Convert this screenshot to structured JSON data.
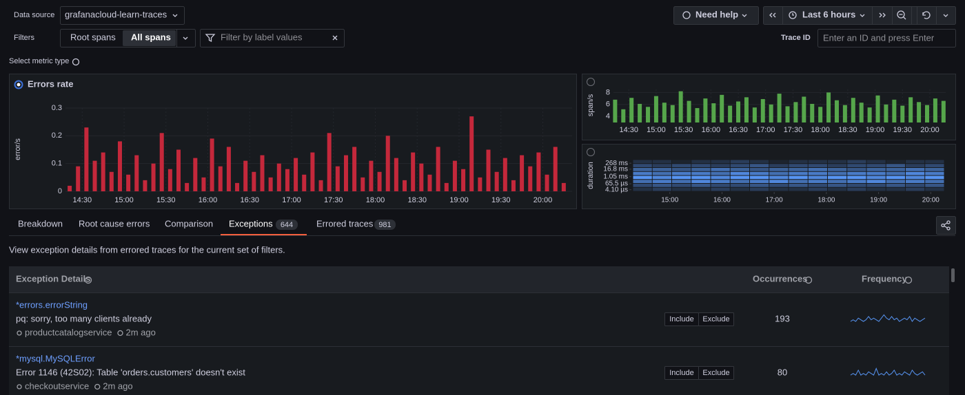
{
  "toolbar": {
    "data_source_label": "Data source",
    "data_source": "grafanacloud-learn-traces",
    "need_help": "Need help",
    "time_range": "Last 6 hours",
    "filters_label": "Filters",
    "root_spans": "Root spans",
    "all_spans": "All spans",
    "filter_placeholder": "Filter by label values",
    "trace_id_label": "Trace ID",
    "trace_id_placeholder": "Enter an ID and press Enter"
  },
  "metric_label": "Select metric type",
  "chart_data": [
    {
      "type": "bar",
      "title": "Errors rate",
      "ylabel": "error/s",
      "color": "#c4283b",
      "grid": true,
      "x": [
        14.35,
        14.45,
        14.55,
        14.65,
        14.75,
        14.85,
        14.95,
        15.05,
        15.15,
        15.25,
        15.35,
        15.45,
        15.55,
        15.65,
        15.75,
        15.85,
        15.95,
        16.05,
        16.15,
        16.25,
        16.35,
        16.45,
        16.55,
        16.65,
        16.75,
        16.85,
        16.95,
        17.05,
        17.15,
        17.25,
        17.35,
        17.45,
        17.55,
        17.65,
        17.75,
        17.85,
        17.95,
        18.05,
        18.15,
        18.25,
        18.35,
        18.45,
        18.55,
        18.65,
        18.75,
        18.85,
        18.95,
        19.05,
        19.15,
        19.25,
        19.35,
        19.45,
        19.55,
        19.65,
        19.75,
        19.85,
        19.95,
        20.05,
        20.15,
        20.25
      ],
      "values": [
        0.02,
        0.09,
        0.23,
        0.11,
        0.14,
        0.07,
        0.18,
        0.06,
        0.13,
        0.04,
        0.1,
        0.21,
        0.08,
        0.15,
        0.03,
        0.12,
        0.05,
        0.19,
        0.09,
        0.16,
        0.03,
        0.11,
        0.07,
        0.13,
        0.05,
        0.1,
        0.08,
        0.12,
        0.06,
        0.14,
        0.04,
        0.21,
        0.09,
        0.13,
        0.16,
        0.05,
        0.11,
        0.07,
        0.2,
        0.12,
        0.04,
        0.14,
        0.1,
        0.06,
        0.16,
        0.03,
        0.11,
        0.08,
        0.27,
        0.05,
        0.15,
        0.07,
        0.12,
        0.04,
        0.13,
        0.09,
        0.14,
        0.06,
        0.16,
        0.03
      ],
      "xlim": [
        14.3,
        20.35
      ],
      "xticks": [
        {
          "value": 14.5,
          "label": "14:30"
        },
        {
          "value": 15,
          "label": "15:00"
        },
        {
          "value": 15.5,
          "label": "15:30"
        },
        {
          "value": 16,
          "label": "16:00"
        },
        {
          "value": 16.5,
          "label": "16:30"
        },
        {
          "value": 17,
          "label": "17:00"
        },
        {
          "value": 17.5,
          "label": "17:30"
        },
        {
          "value": 18,
          "label": "18:00"
        },
        {
          "value": 18.5,
          "label": "18:30"
        },
        {
          "value": 19,
          "label": "19:00"
        },
        {
          "value": 19.5,
          "label": "19:30"
        },
        {
          "value": 20,
          "label": "20:00"
        }
      ],
      "ylim": [
        0,
        0.3
      ],
      "yticks": [
        0,
        0.1,
        0.2,
        0.3
      ]
    },
    {
      "type": "bar",
      "ylabel": "span/s",
      "color": "#56a64b",
      "grid": true,
      "x": [
        14.25,
        14.4,
        14.55,
        14.7,
        14.85,
        15,
        15.15,
        15.3,
        15.45,
        15.6,
        15.75,
        15.9,
        16.05,
        16.2,
        16.35,
        16.5,
        16.65,
        16.8,
        16.95,
        17.1,
        17.25,
        17.4,
        17.55,
        17.7,
        17.85,
        18,
        18.15,
        18.3,
        18.45,
        18.6,
        18.75,
        18.9,
        19.05,
        19.2,
        19.35,
        19.5,
        19.65,
        19.8,
        19.95,
        20.1,
        20.25
      ],
      "values": [
        6.8,
        5.2,
        7.1,
        6.1,
        5.6,
        7.4,
        6.3,
        5.9,
        8.2,
        6.6,
        5.4,
        7.0,
        6.2,
        7.6,
        5.8,
        6.5,
        7.2,
        5.5,
        6.9,
        6.0,
        7.8,
        5.7,
        6.4,
        7.3,
        6.1,
        5.6,
        8.0,
        6.7,
        5.9,
        7.1,
        6.3,
        5.5,
        7.5,
        6.0,
        6.8,
        5.8,
        7.2,
        6.4,
        5.9,
        7.0,
        6.6
      ],
      "xlim": [
        14.22,
        20.29
      ],
      "xticks": [
        {
          "value": 14.5,
          "label": "14:30"
        },
        {
          "value": 15,
          "label": "15:00"
        },
        {
          "value": 15.5,
          "label": "15:30"
        },
        {
          "value": 16,
          "label": "16:00"
        },
        {
          "value": 16.5,
          "label": "16:30"
        },
        {
          "value": 17,
          "label": "17:00"
        },
        {
          "value": 17.5,
          "label": "17:30"
        },
        {
          "value": 18,
          "label": "18:00"
        },
        {
          "value": 18.5,
          "label": "18:30"
        },
        {
          "value": 19,
          "label": "19:00"
        },
        {
          "value": 19.5,
          "label": "19:30"
        },
        {
          "value": 20,
          "label": "20:00"
        }
      ],
      "ylim": [
        3,
        8.5
      ],
      "yticks": [
        4,
        6,
        8
      ]
    },
    {
      "type": "heatmap",
      "ylabel": "duration",
      "color": "#5794f2",
      "values": [
        [
          1,
          2,
          1,
          1,
          2,
          1,
          2,
          1,
          1,
          2,
          1,
          2,
          1,
          1,
          2,
          1
        ],
        [
          3,
          4,
          3,
          4,
          3,
          3,
          4,
          3,
          4,
          3,
          4,
          3,
          3,
          4,
          3,
          4
        ],
        [
          6,
          7,
          6,
          8,
          7,
          6,
          7,
          8,
          6,
          7,
          6,
          7,
          8,
          6,
          7,
          6
        ],
        [
          9,
          8,
          9,
          9,
          8,
          9,
          9,
          8,
          9,
          8,
          9,
          9,
          8,
          9,
          8,
          9
        ],
        [
          7,
          6,
          7,
          7,
          6,
          8,
          7,
          6,
          7,
          7,
          6,
          7,
          7,
          6,
          8,
          7
        ],
        [
          5,
          5,
          4,
          5,
          6,
          5,
          4,
          5,
          5,
          6,
          5,
          4,
          5,
          5,
          6,
          5
        ],
        [
          3,
          2,
          3,
          3,
          2,
          3,
          4,
          2,
          3,
          3,
          2,
          3,
          3,
          4,
          2,
          3
        ],
        [
          1,
          1,
          0,
          1,
          1,
          2,
          1,
          0,
          1,
          1,
          1,
          2,
          1,
          0,
          1,
          1
        ]
      ],
      "xlim": [
        14.29,
        20.26
      ],
      "xticks": [
        {
          "value": 15,
          "label": "15:00"
        },
        {
          "value": 16,
          "label": "16:00"
        },
        {
          "value": 17,
          "label": "17:00"
        },
        {
          "value": 18,
          "label": "18:00"
        },
        {
          "value": 19,
          "label": "19:00"
        },
        {
          "value": 20,
          "label": "20:00"
        }
      ],
      "ylim": [
        0,
        8
      ],
      "yticks": [
        {
          "value": 7.1,
          "label": "268 ms"
        },
        {
          "value": 5.6,
          "label": "16.8 ms"
        },
        {
          "value": 3.7,
          "label": "1.05 ms"
        },
        {
          "value": 1.9,
          "label": "65.5 µs"
        },
        {
          "value": 0.4,
          "label": "4.10 µs"
        }
      ]
    }
  ],
  "tabs": [
    {
      "label": "Breakdown"
    },
    {
      "label": "Root cause errors"
    },
    {
      "label": "Comparison"
    },
    {
      "label": "Exceptions",
      "count": 644
    },
    {
      "label": "Errored traces",
      "count": 981
    }
  ],
  "description": "View exception details from errored traces for the current set of filters.",
  "table": {
    "headers": [
      "Exception Details",
      "Occurrences",
      "Frequency"
    ],
    "rows": [
      {
        "type": "*errors.errorString",
        "message": "pq: sorry, too many clients already",
        "service": "productcatalogservice",
        "time": "2m ago",
        "include": "Include",
        "exclude": "Exclude",
        "occurrences": 193,
        "frequency": {
          "values": [
            2,
            3,
            2,
            4,
            3,
            2,
            3,
            5,
            3,
            4,
            3,
            2,
            4,
            6,
            4,
            3,
            5,
            3,
            4,
            2,
            3,
            4,
            3,
            5,
            2,
            4,
            3,
            2,
            3,
            4
          ],
          "ylim": [
            0,
            7
          ]
        }
      },
      {
        "type": "*mysql.MySQLError",
        "message": "Error 1146 (42S02): Table 'orders.customers' doesn't exist",
        "service": "checkoutservice",
        "time": "2m ago",
        "include": "Include",
        "exclude": "Exclude",
        "occurrences": 80,
        "frequency": {
          "values": [
            2,
            3,
            2,
            5,
            2,
            3,
            2,
            4,
            3,
            2,
            6,
            2,
            3,
            2,
            4,
            2,
            3,
            5,
            2,
            3,
            2,
            4,
            3,
            2,
            5,
            3,
            2,
            3,
            4,
            2
          ],
          "ylim": [
            0,
            7
          ]
        }
      }
    ]
  }
}
